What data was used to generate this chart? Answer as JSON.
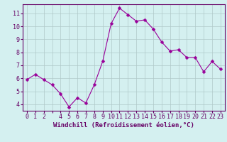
{
  "x": [
    0,
    1,
    2,
    3,
    4,
    5,
    6,
    7,
    8,
    9,
    10,
    11,
    12,
    13,
    14,
    15,
    16,
    17,
    18,
    19,
    20,
    21,
    22,
    23
  ],
  "y": [
    5.9,
    6.3,
    5.9,
    5.5,
    4.8,
    3.8,
    4.5,
    4.1,
    5.5,
    7.3,
    10.2,
    11.4,
    10.9,
    10.4,
    10.5,
    9.8,
    8.8,
    8.1,
    8.2,
    7.6,
    7.6,
    6.5,
    7.3,
    6.7
  ],
  "line_color": "#990099",
  "marker": "D",
  "marker_size": 2.5,
  "bg_color": "#d4f0f0",
  "grid_color": "#b0c8c8",
  "xlabel": "Windchill (Refroidissement éolien,°C)",
  "xlim": [
    -0.5,
    23.5
  ],
  "ylim": [
    3.5,
    11.7
  ],
  "yticks": [
    4,
    5,
    6,
    7,
    8,
    9,
    10,
    11
  ],
  "xtick_labels": [
    "0",
    "1",
    "2",
    "",
    "4",
    "5",
    "6",
    "7",
    "8",
    "9",
    "10",
    "11",
    "12",
    "13",
    "14",
    "15",
    "16",
    "17",
    "18",
    "19",
    "20",
    "21",
    "22",
    "23"
  ],
  "xlabel_fontsize": 6.5,
  "tick_fontsize": 6,
  "axis_color": "#660066",
  "spine_color": "#660066"
}
